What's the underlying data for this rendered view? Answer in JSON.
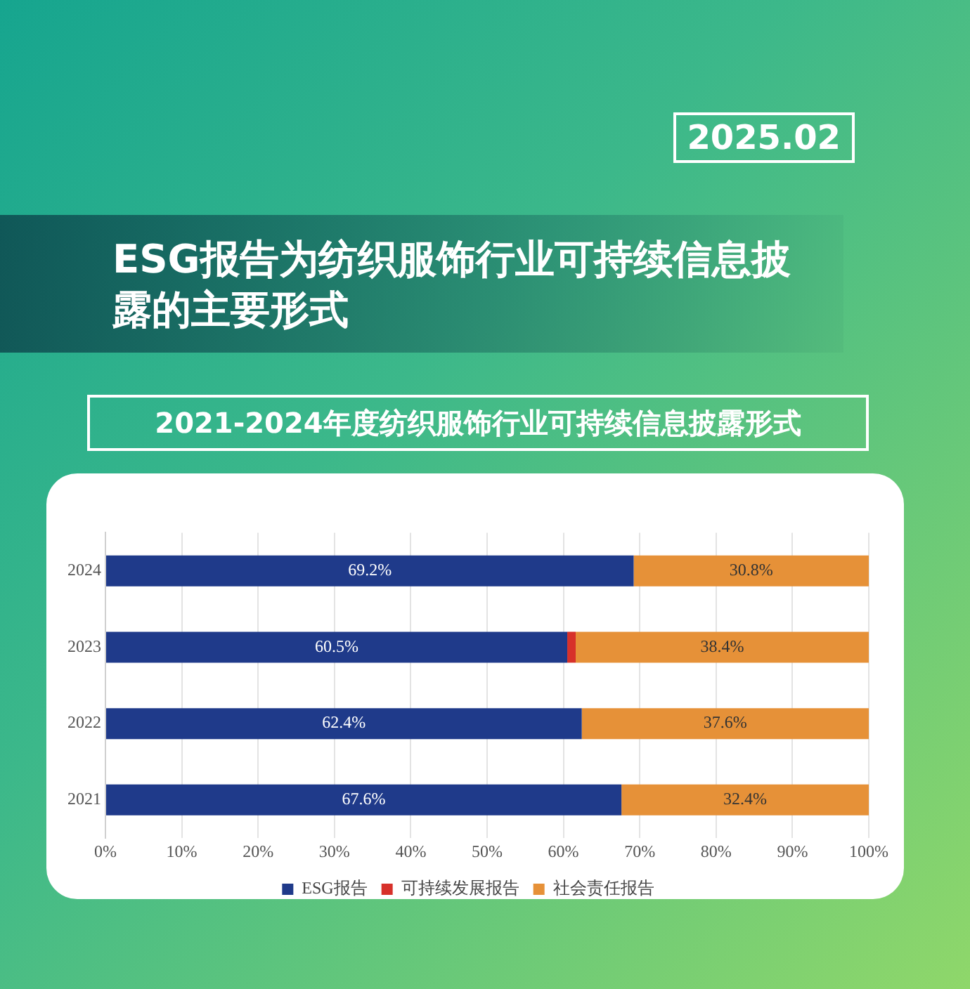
{
  "chart_data": {
    "type": "bar",
    "orientation": "horizontal",
    "stacked": true,
    "title": "ESG报告为纺织服饰行业可持续信息披露的主要形式",
    "subtitle": "2021-2024年度纺织服饰行业可持续信息披露形式",
    "annotations": [
      "2025.02"
    ],
    "categories": [
      "2024",
      "2023",
      "2022",
      "2021"
    ],
    "series": [
      {
        "name": "ESG报告",
        "color": "#1f3a8a",
        "values": [
          69.2,
          60.5,
          62.4,
          67.6
        ],
        "value_labels": [
          "69.2%",
          "60.5%",
          "62.4%",
          "67.6%"
        ]
      },
      {
        "name": "可持续发展报告",
        "color": "#d7312a",
        "values": [
          0,
          1.1,
          0,
          0
        ],
        "value_labels": [
          null,
          null,
          null,
          null
        ]
      },
      {
        "name": "社会责任报告",
        "color": "#e69138",
        "values": [
          30.8,
          38.4,
          37.6,
          32.4
        ],
        "value_labels": [
          "30.8%",
          "38.4%",
          "37.6%",
          "32.4%"
        ]
      }
    ],
    "xlim": [
      0,
      100
    ],
    "xticks": [
      {
        "value": 0,
        "label": "0%"
      },
      {
        "value": 10,
        "label": "10%"
      },
      {
        "value": 20,
        "label": "20%"
      },
      {
        "value": 30,
        "label": "30%"
      },
      {
        "value": 40,
        "label": "40%"
      },
      {
        "value": 50,
        "label": "50%"
      },
      {
        "value": 60,
        "label": "60%"
      },
      {
        "value": 70,
        "label": "70%"
      },
      {
        "value": 80,
        "label": "80%"
      },
      {
        "value": 90,
        "label": "90%"
      },
      {
        "value": 100,
        "label": "100%"
      }
    ],
    "grid": "x",
    "legend": "bottom"
  }
}
